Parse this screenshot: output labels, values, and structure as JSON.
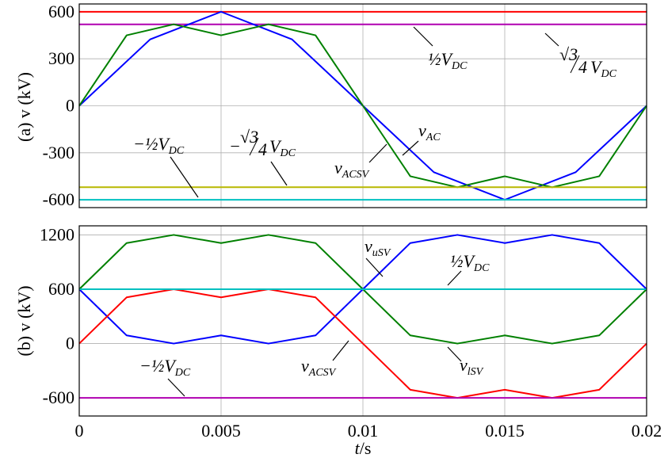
{
  "chart_data": [
    {
      "type": "line",
      "panel": "a",
      "ylabel": "(a) v (kV)",
      "xlim": [
        0,
        0.02
      ],
      "ylim": [
        -650,
        650
      ],
      "yticks": [
        600,
        300,
        0,
        -300,
        -600
      ],
      "ytick_labels": [
        "600",
        "300",
        "0",
        "-300",
        "-600"
      ],
      "grid": true,
      "series": [
        {
          "name": "½V_DC",
          "color": "#ff0000",
          "x": [
            0,
            0.02
          ],
          "values": [
            600,
            600
          ]
        },
        {
          "name": "√3/4 V_DC",
          "color": "#b000b0",
          "x": [
            0,
            0.02
          ],
          "values": [
            519.6,
            519.6
          ]
        },
        {
          "name": "v_AC",
          "color": "#0000ff",
          "x": [
            0,
            0.0025,
            0.005,
            0.0075,
            0.01,
            0.0125,
            0.015,
            0.0175,
            0.02
          ],
          "values": [
            0,
            424,
            600,
            424,
            0,
            -424,
            -600,
            -424,
            0
          ]
        },
        {
          "name": "v_ACSV",
          "color": "#008000",
          "x": [
            0,
            0.00167,
            0.00333,
            0.005,
            0.00667,
            0.00833,
            0.01,
            0.01167,
            0.01333,
            0.015,
            0.01667,
            0.01833,
            0.02
          ],
          "values": [
            0,
            450,
            520,
            450,
            520,
            450,
            0,
            -450,
            -520,
            -450,
            -520,
            -450,
            0
          ]
        },
        {
          "name": "−√3/4 V_DC",
          "color": "#b8b800",
          "x": [
            0,
            0.02
          ],
          "values": [
            -519.6,
            -519.6
          ]
        },
        {
          "name": "−½V_DC",
          "color": "#00c0c0",
          "x": [
            0,
            0.02
          ],
          "values": [
            -600,
            -600
          ]
        }
      ]
    },
    {
      "type": "line",
      "panel": "b",
      "ylabel": "(b) v (kV)",
      "xlabel": "t/s",
      "xlim": [
        0,
        0.02
      ],
      "ylim": [
        -800,
        1300
      ],
      "xticks": [
        0,
        0.005,
        0.01,
        0.015,
        0.02
      ],
      "xtick_labels": [
        "0",
        "0.005",
        "0.01",
        "0.015",
        "0.02"
      ],
      "yticks": [
        1200,
        600,
        0,
        -600
      ],
      "ytick_labels": [
        "1200",
        "600",
        "0",
        "-600"
      ],
      "grid": true,
      "series": [
        {
          "name": "v_uSV",
          "color": "#008000",
          "x": [
            0,
            0.00167,
            0.00333,
            0.005,
            0.00667,
            0.00833,
            0.01,
            0.01167,
            0.01333,
            0.015,
            0.01667,
            0.01833,
            0.02
          ],
          "values": [
            600,
            1110,
            1200,
            1110,
            1200,
            1110,
            600,
            90,
            0,
            90,
            0,
            90,
            600
          ]
        },
        {
          "name": "v_lSV",
          "color": "#0000ff",
          "x": [
            0,
            0.00167,
            0.00333,
            0.005,
            0.00667,
            0.00833,
            0.01,
            0.01167,
            0.01333,
            0.015,
            0.01667,
            0.01833,
            0.02
          ],
          "values": [
            600,
            90,
            0,
            90,
            0,
            90,
            600,
            1110,
            1200,
            1110,
            1200,
            1110,
            600
          ]
        },
        {
          "name": "v_ACSV",
          "color": "#ff0000",
          "x": [
            0,
            0.00167,
            0.00333,
            0.005,
            0.00667,
            0.00833,
            0.01,
            0.01167,
            0.01333,
            0.015,
            0.01667,
            0.01833,
            0.02
          ],
          "values": [
            0,
            510,
            600,
            510,
            600,
            510,
            0,
            -510,
            -600,
            -510,
            -600,
            -510,
            0
          ]
        },
        {
          "name": "½V_DC",
          "color": "#00c0c0",
          "x": [
            0,
            0.02
          ],
          "values": [
            600,
            600
          ]
        },
        {
          "name": "−½V_DC",
          "color": "#b000b0",
          "x": [
            0,
            0.02
          ],
          "values": [
            -600,
            -600
          ]
        }
      ]
    }
  ],
  "annotations": {
    "a": {
      "half_vdc_main": "½V",
      "half_vdc_sub": "DC",
      "sqrt3_root": "√3",
      "sqrt3_den": "4",
      "sqrt3_v": "V",
      "sqrt3_sub": "DC",
      "neg_half_main": "−½V",
      "neg_half_sub": "DC",
      "neg_sqrt3_minus": "−",
      "neg_sqrt3_root": "√3",
      "neg_sqrt3_den": "4",
      "neg_sqrt3_v": "V",
      "neg_sqrt3_sub": "DC",
      "vac_main": "v",
      "vac_sub": "AC",
      "vacsv_main": "v",
      "vacsv_sub": "ACSV"
    },
    "b": {
      "vusv_main": "v",
      "vusv_sub": "uSV",
      "half_vdc_main": "½V",
      "half_vdc_sub": "DC",
      "neg_half_main": "−½V",
      "neg_half_sub": "DC",
      "vacsv_main": "v",
      "vacsv_sub": "ACSV",
      "vlsv_main": "v",
      "vlsv_sub": "lSV"
    }
  },
  "xlabel_main": "t",
  "xlabel_unit": "/s"
}
